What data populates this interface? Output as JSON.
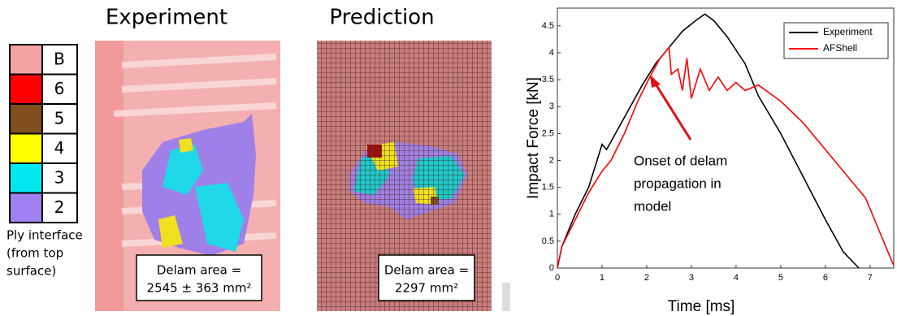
{
  "panels": {
    "legend": {
      "rows": [
        {
          "label": "B",
          "color": "#f4a3a3"
        },
        {
          "label": "6",
          "color": "#ff0000"
        },
        {
          "label": "5",
          "color": "#7f4f1f"
        },
        {
          "label": "4",
          "color": "#ffff00"
        },
        {
          "label": "3",
          "color": "#00e8f0"
        },
        {
          "label": "2",
          "color": "#a080f0"
        }
      ],
      "caption": [
        "Ply interface",
        "(from top",
        "surface)"
      ]
    },
    "experiment": {
      "title": "Experiment",
      "area": [
        "Delam area =",
        "2545 ± 363  mm²"
      ]
    },
    "prediction": {
      "title": "Prediction",
      "area": [
        "Delam area =",
        "2297 mm²"
      ]
    }
  },
  "chart_data": {
    "type": "line",
    "xlabel": "Time [ms]",
    "ylabel": "Impact Force [kN]",
    "annotation": [
      "Onset of delam",
      "propagation in",
      "model"
    ],
    "xlim": [
      0,
      7.53
    ],
    "ylim": [
      0,
      4.83
    ],
    "xticks": [
      0,
      1,
      2,
      3,
      4,
      5,
      6,
      7
    ],
    "yticks": [
      0,
      0.5,
      1,
      1.5,
      2,
      2.5,
      3,
      3.5,
      4,
      4.5
    ],
    "legend": "upper right",
    "series": [
      {
        "name": "Experiment",
        "color": "#000000",
        "x": [
          0,
          0.1,
          0.4,
          0.7,
          1.0,
          1.1,
          1.3,
          1.5,
          1.9,
          2.2,
          2.5,
          2.8,
          3.1,
          3.3,
          3.5,
          3.8,
          4.2,
          4.5,
          5.0,
          5.5,
          6.0,
          6.4,
          6.75
        ],
        "values": [
          0,
          0.4,
          1.0,
          1.5,
          2.3,
          2.2,
          2.5,
          2.8,
          3.4,
          3.8,
          4.1,
          4.4,
          4.6,
          4.72,
          4.6,
          4.3,
          3.8,
          3.2,
          2.5,
          1.7,
          0.9,
          0.3,
          0
        ]
      },
      {
        "name": "AFShell",
        "color": "#ff0000",
        "x": [
          0,
          0.1,
          0.4,
          0.7,
          1.0,
          1.2,
          1.5,
          1.8,
          2.1,
          2.3,
          2.5,
          2.55,
          2.7,
          2.8,
          2.9,
          3.0,
          3.2,
          3.4,
          3.6,
          3.8,
          4.0,
          4.2,
          4.5,
          5.0,
          5.5,
          6.0,
          6.5,
          6.9,
          7.1,
          7.4,
          7.53
        ],
        "values": [
          0,
          0.4,
          0.9,
          1.4,
          1.8,
          2.0,
          2.5,
          3.1,
          3.6,
          3.9,
          4.1,
          3.6,
          3.7,
          3.3,
          3.9,
          3.15,
          3.7,
          3.3,
          3.55,
          3.3,
          3.45,
          3.3,
          3.4,
          3.1,
          2.7,
          2.2,
          1.7,
          1.3,
          0.9,
          0.3,
          0.05
        ]
      }
    ]
  }
}
